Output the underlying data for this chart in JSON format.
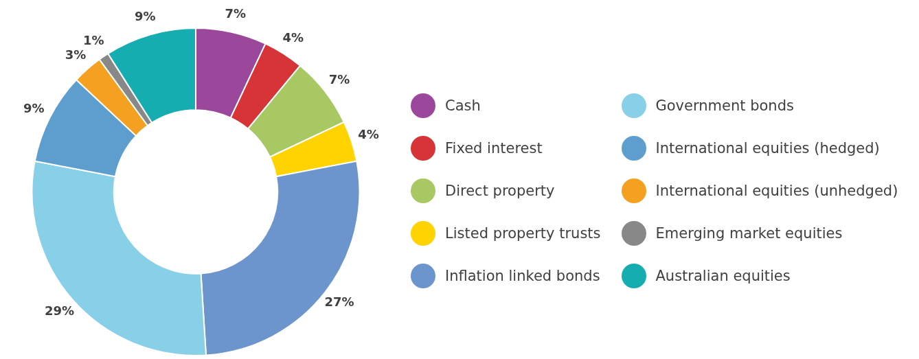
{
  "chart_data": {
    "type": "donut",
    "categories": [
      "Cash",
      "Fixed interest",
      "Direct property",
      "Listed property trusts",
      "Inflation linked bonds",
      "Government bonds",
      "International equities (hedged)",
      "International equities (unhedged)",
      "Emerging market equities",
      "Australian equities"
    ],
    "values": [
      7,
      4,
      7,
      4,
      27,
      29,
      9,
      3,
      1,
      9
    ],
    "value_labels": [
      "7%",
      "4%",
      "7%",
      "4%",
      "27%",
      "29%",
      "9%",
      "3%",
      "1%",
      "9%"
    ],
    "colors": [
      "#9b479b",
      "#d63437",
      "#a8c864",
      "#ffd300",
      "#6b95cc",
      "#88cfe8",
      "#5e9ecf",
      "#f4a020",
      "#888888",
      "#16adb1"
    ],
    "legend": "right"
  }
}
